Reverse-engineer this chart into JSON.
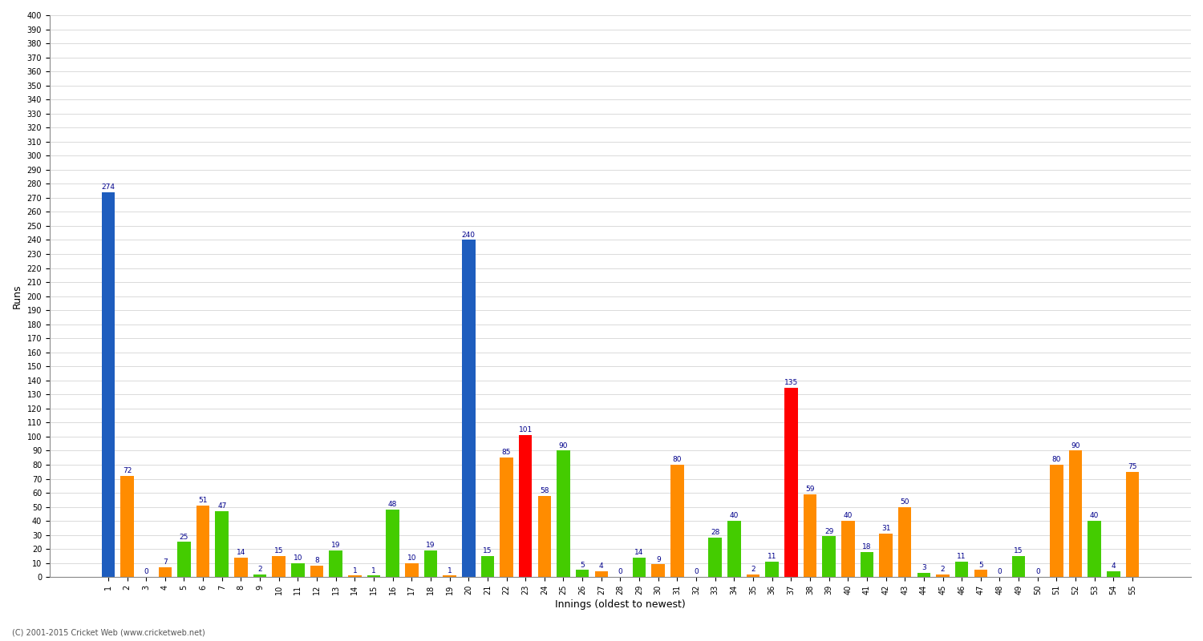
{
  "xlabel": "Innings (oldest to newest)",
  "ylabel": "Runs",
  "innings": [
    1,
    2,
    3,
    4,
    5,
    6,
    7,
    8,
    9,
    10,
    11,
    12,
    13,
    14,
    15,
    16,
    17,
    18,
    19,
    20,
    21,
    22,
    23,
    24,
    25,
    26,
    27,
    28,
    29,
    30,
    31,
    32,
    33,
    34,
    35,
    36,
    37,
    38,
    39,
    40,
    41,
    42,
    43,
    44,
    45,
    46,
    47,
    48,
    49,
    50,
    51,
    52,
    53,
    54,
    55
  ],
  "values": [
    274,
    72,
    0,
    7,
    25,
    51,
    47,
    14,
    2,
    15,
    10,
    8,
    19,
    1,
    1,
    48,
    10,
    19,
    1,
    240,
    15,
    85,
    101,
    58,
    90,
    5,
    4,
    0,
    14,
    9,
    80,
    0,
    28,
    40,
    2,
    11,
    135,
    59,
    29,
    40,
    18,
    31,
    50,
    3,
    2,
    11,
    5,
    0,
    15,
    0,
    80,
    90,
    40,
    4,
    75
  ],
  "colors": [
    "#1e5dbe",
    "#ff8c00",
    "#44cc00",
    "#ff8c00",
    "#44cc00",
    "#ff8c00",
    "#44cc00",
    "#ff8c00",
    "#44cc00",
    "#ff8c00",
    "#44cc00",
    "#ff8c00",
    "#44cc00",
    "#ff8c00",
    "#44cc00",
    "#44cc00",
    "#ff8c00",
    "#44cc00",
    "#ff8c00",
    "#1e5dbe",
    "#44cc00",
    "#ff8c00",
    "#ff0000",
    "#ff8c00",
    "#44cc00",
    "#44cc00",
    "#ff8c00",
    "#44cc00",
    "#44cc00",
    "#ff8c00",
    "#ff8c00",
    "#44cc00",
    "#44cc00",
    "#44cc00",
    "#ff8c00",
    "#44cc00",
    "#ff0000",
    "#ff8c00",
    "#44cc00",
    "#ff8c00",
    "#44cc00",
    "#ff8c00",
    "#ff8c00",
    "#44cc00",
    "#ff8c00",
    "#44cc00",
    "#ff8c00",
    "#44cc00",
    "#44cc00",
    "#ff8c00",
    "#ff8c00",
    "#ff8c00",
    "#44cc00",
    "#44cc00",
    "#ff8c00"
  ],
  "ylim": [
    0,
    400
  ],
  "ytick_step": 10,
  "background_color": "#ffffff",
  "grid_color": "#cccccc",
  "label_color": "#00008b",
  "footer": "(C) 2001-2015 Cricket Web (www.cricketweb.net)"
}
